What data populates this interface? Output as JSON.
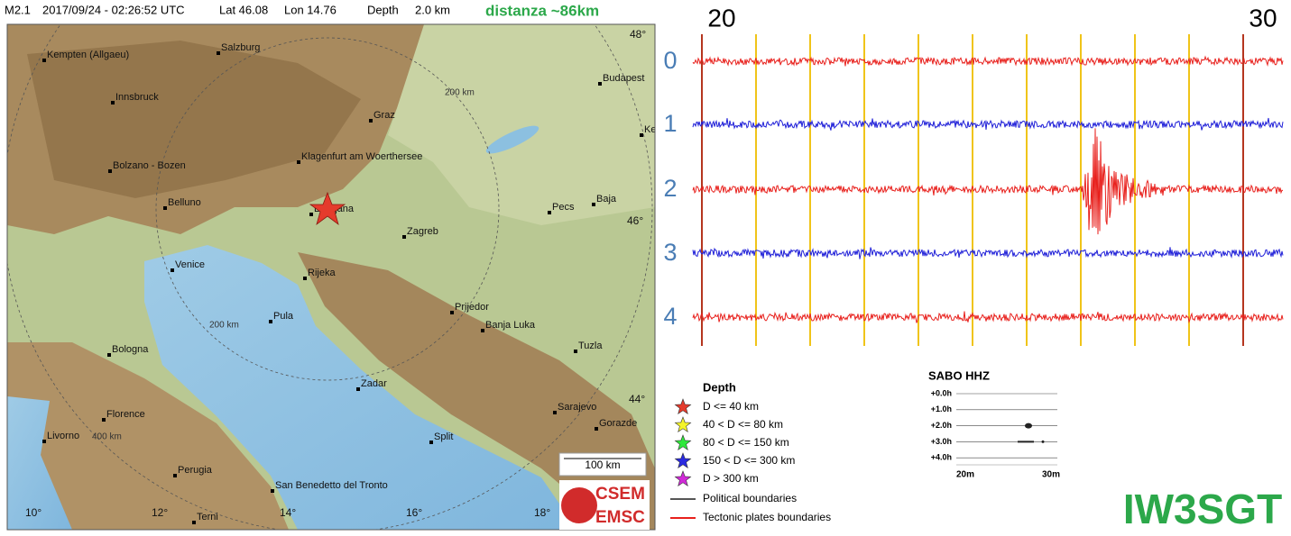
{
  "header": {
    "magnitude": "M2.1",
    "datetime": "2017/09/24 - 02:26:52 UTC",
    "lat": "Lat 46.08",
    "lon": "Lon 14.76",
    "depth_label": "Depth",
    "depth": "2.0 km",
    "distance": "distanza ~86km"
  },
  "map": {
    "cities": [
      "Kempten (Allgaeu)",
      "Salzburg",
      "Budapest",
      "Innsbruck",
      "Graz",
      "Ke",
      "Klagenfurt am Woerthersee",
      "Bolzano - Bozen",
      "Belluno",
      "Ljubljana",
      "Baja",
      "Pecs",
      "Zagreb",
      "Venice",
      "Rijeka",
      "Pula",
      "Prijedor",
      "Banja Luka",
      "Bologna",
      "Tuzla",
      "Zadar",
      "Sarajevo",
      "Florence",
      "Gorazde",
      "Livorno",
      "Split",
      "Perugia",
      "San Benedetto del Tronto",
      "Terni"
    ],
    "graticule": [
      "48°",
      "46°",
      "44°",
      "10°",
      "12°",
      "14°",
      "16°",
      "18°"
    ],
    "rings": [
      "200 km",
      "200 km",
      "400 km"
    ],
    "scale": "100 km",
    "logo": [
      "CSEM",
      "EMSC"
    ]
  },
  "legend": {
    "title": "Depth",
    "depth_classes": [
      "D <= 40 km",
      "40 < D <= 80 km",
      "80 < D <= 150 km",
      "150 < D <= 300 km",
      "D > 300 km"
    ],
    "lines": [
      "Political boundaries",
      "Tectonic plates boundaries"
    ]
  },
  "helicorder": {
    "title": "SABO HHZ",
    "rows": [
      "+0.0h",
      "+1.0h",
      "+2.0h",
      "+3.0h",
      "+4.0h"
    ],
    "x_labels": [
      "20m",
      "30m"
    ]
  },
  "seismogram": {
    "time_labels": [
      "20",
      "30"
    ],
    "channels": [
      "0",
      "1",
      "2",
      "3",
      "4"
    ]
  },
  "station": "IW3SGT"
}
